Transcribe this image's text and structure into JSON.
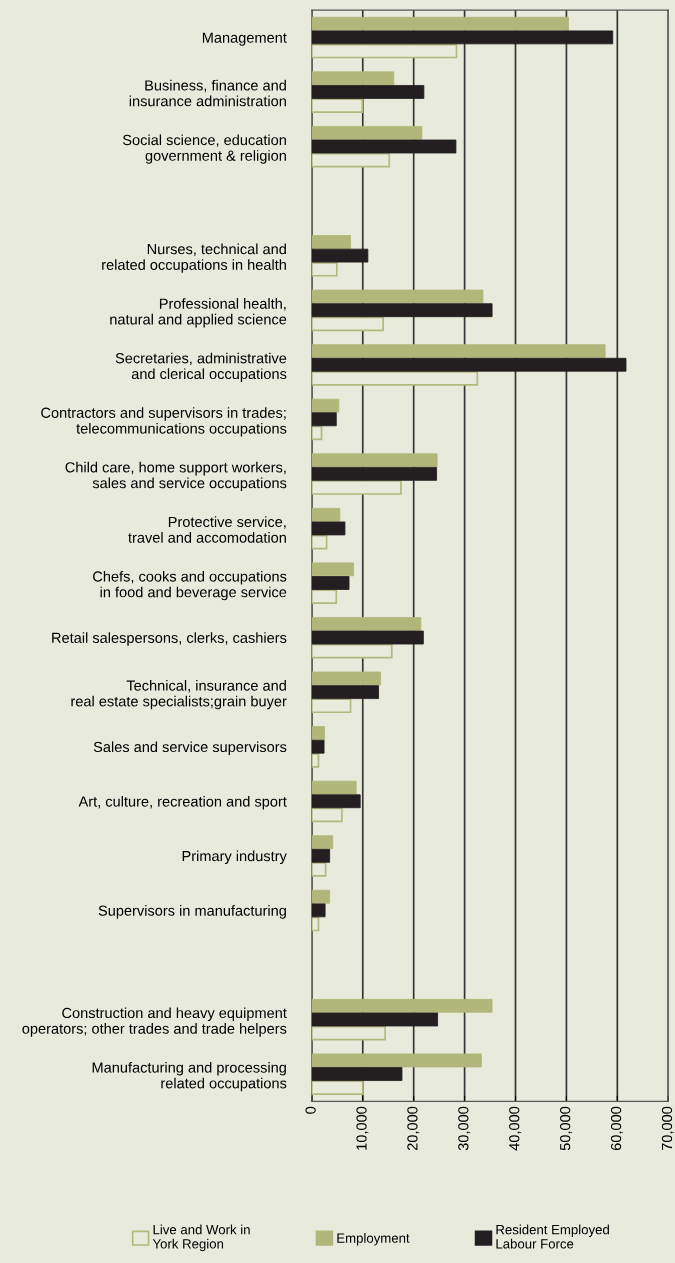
{
  "chart_data": {
    "type": "bar",
    "orientation": "horizontal",
    "categories": [
      "Management",
      "Business, finance and\ninsurance administration",
      "Social science, education\ngovernment & religion",
      null,
      "Nurses, technical and\nrelated occupations in health",
      "Professional health,\nnatural and applied science",
      "Secretaries, administrative\nand clerical occupations",
      "Contractors and supervisors in trades;\ntelecommunications occupations",
      "Child care, home support workers,\nsales and service occupations",
      "Protective service,\ntravel and accomodation",
      "Chefs, cooks and occupations\nin food and beverage service",
      "Retail salespersons, clerks, cashiers",
      "Technical, insurance and\nreal estate specialists;grain buyer",
      "Sales and service supervisors",
      "Art, culture, recreation and sport",
      "Primary industry",
      "Supervisors in manufacturing",
      null,
      "Construction and heavy equipment\noperators; other trades and trade helpers",
      "Manufacturing and processing\nrelated occupations"
    ],
    "series": [
      {
        "name": "Live and Work in\nYork Region",
        "color": "#b3b87e",
        "values": [
          28400,
          9900,
          15200,
          null,
          4900,
          14000,
          32500,
          1900,
          17500,
          2900,
          4800,
          15700,
          7600,
          1300,
          5900,
          2700,
          1300,
          null,
          14400,
          10000
        ]
      },
      {
        "name": "Employment",
        "color": "#b1b77b",
        "values": [
          50400,
          16100,
          21600,
          null,
          7600,
          33600,
          57600,
          5300,
          24600,
          5500,
          8200,
          21400,
          13500,
          2500,
          8700,
          4100,
          3500,
          null,
          35400,
          33300
        ]
      },
      {
        "name": "Resident Employed\nLabour Force",
        "color": "#231f20",
        "values": [
          59100,
          22000,
          28300,
          null,
          11000,
          35400,
          61700,
          4800,
          24500,
          6500,
          7300,
          21900,
          13100,
          2400,
          9500,
          3500,
          2600,
          null,
          24700,
          17700
        ]
      }
    ],
    "xlim": [
      0,
      70000
    ],
    "xticks": [
      0,
      {
        "value": 10000,
        "label": "10,000"
      },
      {
        "value": 20000,
        "label": "20,000"
      },
      {
        "value": 30000,
        "label": "30,000"
      },
      {
        "value": 40000,
        "label": "40,000"
      },
      {
        "value": 50000,
        "label": "50,000"
      },
      {
        "value": 60000,
        "label": "60,000"
      },
      {
        "value": 70000,
        "label": "70,000"
      }
    ],
    "grid": "x",
    "legend": "bottom"
  }
}
